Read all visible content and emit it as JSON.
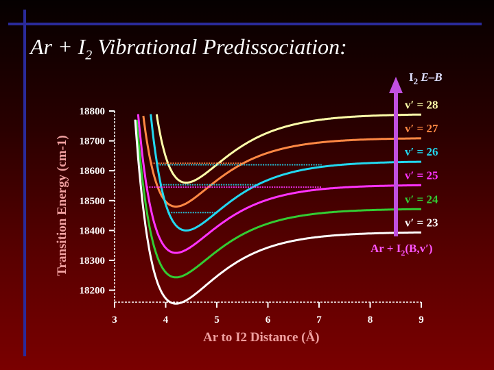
{
  "slide": {
    "title_main": "Ar + I",
    "title_sub": "2",
    "title_rest": " Vibrational Predissociation:"
  },
  "chart_data": {
    "type": "line",
    "title": "Ar + I2 Vibrational Predissociation:",
    "xlabel": "Ar to I2 Distance (Å)",
    "ylabel": "Transition Energy (cm-1)",
    "xlim": [
      3,
      9
    ],
    "ylim": [
      18160,
      18800
    ],
    "x_ticks": [
      3,
      4,
      5,
      6,
      7,
      8,
      9
    ],
    "y_ticks": [
      18200,
      18300,
      18400,
      18500,
      18600,
      18700,
      18800
    ],
    "arrow_label": {
      "main": "I",
      "sub": "2",
      "rest": " E–B"
    },
    "asymptote_label": {
      "pre": "Ar + I",
      "sub": "2",
      "post": "(B,v′)"
    },
    "series": [
      {
        "name": "v′ = 23",
        "color": "#ffffff",
        "asymptote": 18395,
        "minimum": 18155,
        "r_min": 4.2,
        "levels": [
          18442,
          18432,
          18420
        ]
      },
      {
        "name": "v′ = 24",
        "color": "#33cc33",
        "asymptote": 18473,
        "minimum": 18243,
        "r_min": 4.2,
        "levels": [
          18545,
          18530,
          18515,
          18500,
          18488
        ]
      },
      {
        "name": "v′ = 25",
        "color": "#ff33ff",
        "asymptote": 18553,
        "minimum": 18325,
        "r_min": 4.2,
        "levels": [
          18568,
          18545
        ]
      },
      {
        "name": "v′ = 26",
        "color": "#22d8f0",
        "asymptote": 18632,
        "minimum": 18400,
        "r_min": 4.4,
        "levels": [
          18620,
          18553,
          18460
        ]
      },
      {
        "name": "v′ = 27",
        "color": "#ff8844",
        "asymptote": 18710,
        "minimum": 18480,
        "r_min": 4.2,
        "levels": [
          18625
        ]
      },
      {
        "name": "v′ = 28",
        "color": "#ffffaa",
        "asymptote": 18790,
        "minimum": 18560,
        "r_min": 4.4,
        "levels": []
      }
    ]
  }
}
